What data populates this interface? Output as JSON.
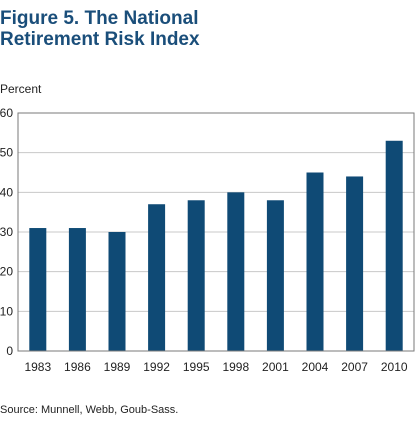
{
  "chart_data": {
    "type": "bar",
    "title_lines": [
      "Figure 5. The National",
      "Retirement Risk Index"
    ],
    "ylabel": "Percent",
    "xlabel": "",
    "categories": [
      "1983",
      "1986",
      "1989",
      "1992",
      "1995",
      "1998",
      "2001",
      "2004",
      "2007",
      "2010"
    ],
    "values": [
      31,
      31,
      30,
      37,
      38,
      40,
      38,
      45,
      44,
      53
    ],
    "ylim": [
      0,
      60
    ],
    "yticks": [
      "0",
      "10",
      "20",
      "30",
      "40",
      "50",
      "60"
    ],
    "grid": true,
    "bar_color": "#0f4a75",
    "source": "Source: Munnell, Webb, Goub-Sass."
  }
}
